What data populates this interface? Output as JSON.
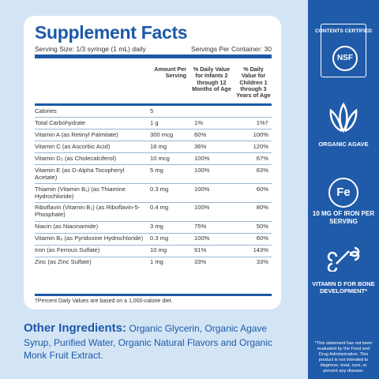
{
  "label": {
    "title": "Supplement Facts",
    "serving_size": "Serving Size: 1/3 syringe (1 mL) daily",
    "servings_per_container": "Servings Per Container: 30",
    "headers": [
      "Amount Per Serving",
      "% Daily Value for Infants 2 through 12 Months of Age",
      "% Daily Value for Children 1 through 3 Years of Age"
    ],
    "rows": [
      [
        "Calories",
        "5"
      ],
      [
        "Total Carbohydrate",
        "1 g",
        "1%",
        "1%†"
      ],
      [
        "Vitamin A (as Retinyl Palmitate)",
        "300 mcg",
        "60%",
        "100%"
      ],
      [
        "Vitamin C (as Ascorbic Acid)",
        "18 mg",
        "36%",
        "120%"
      ],
      [
        "Vitamin D₃ (as Cholecalciferol)",
        "10 mcg",
        "100%",
        "67%"
      ],
      [
        "Vitamin E (as D-Alpha Tocopheryl Acetate)",
        "5 mg",
        "100%",
        "83%"
      ],
      [
        "Thiamin (Vitamin B₁) (as Thiamine Hydrochloride)",
        "0.3 mg",
        "100%",
        "60%"
      ],
      [
        "Riboflavin (Vitamin B₂) (as Riboflavin-5-Phosphate)",
        "0.4 mg",
        "100%",
        "80%"
      ],
      [
        "Niacin (as Niacinamide)",
        "3 mg",
        "75%",
        "50%"
      ],
      [
        "Vitamin B₆ (as Pyridoxine Hydrochloride)",
        "0.3 mg",
        "100%",
        "60%"
      ],
      [
        "Iron (as Ferrous Sulfate)",
        "10 mg",
        "91%",
        "143%"
      ],
      [
        "Zinc (as Zinc Sulfate)",
        "1 mg",
        "33%",
        "33%"
      ]
    ],
    "footnote": "†Percent Daily Values are based on a 1,000-calorie diet."
  },
  "ingredients": {
    "heading": "Other Ingredients:",
    "text": "Organic Glycerin, Organic Agave Syrup, Purified Water, Organic Natural Flavors and Organic Monk Fruit Extract."
  },
  "sidebar": {
    "certification": {
      "caption": "CONTENTS CERTIFIED",
      "logo": "NSF"
    },
    "badges": [
      {
        "label": "ORGANIC AGAVE"
      },
      {
        "icon": "Fe",
        "label": "10 MG OF IRON PER SERVING"
      },
      {
        "label": "VITAMIN D FOR BONE DEVELOPMENT*"
      }
    ],
    "disclaimer": "*This statement has not been evaluated by the Food and Drug Administration. This product is not intended to diagnose, treat, cure, or prevent any disease."
  }
}
